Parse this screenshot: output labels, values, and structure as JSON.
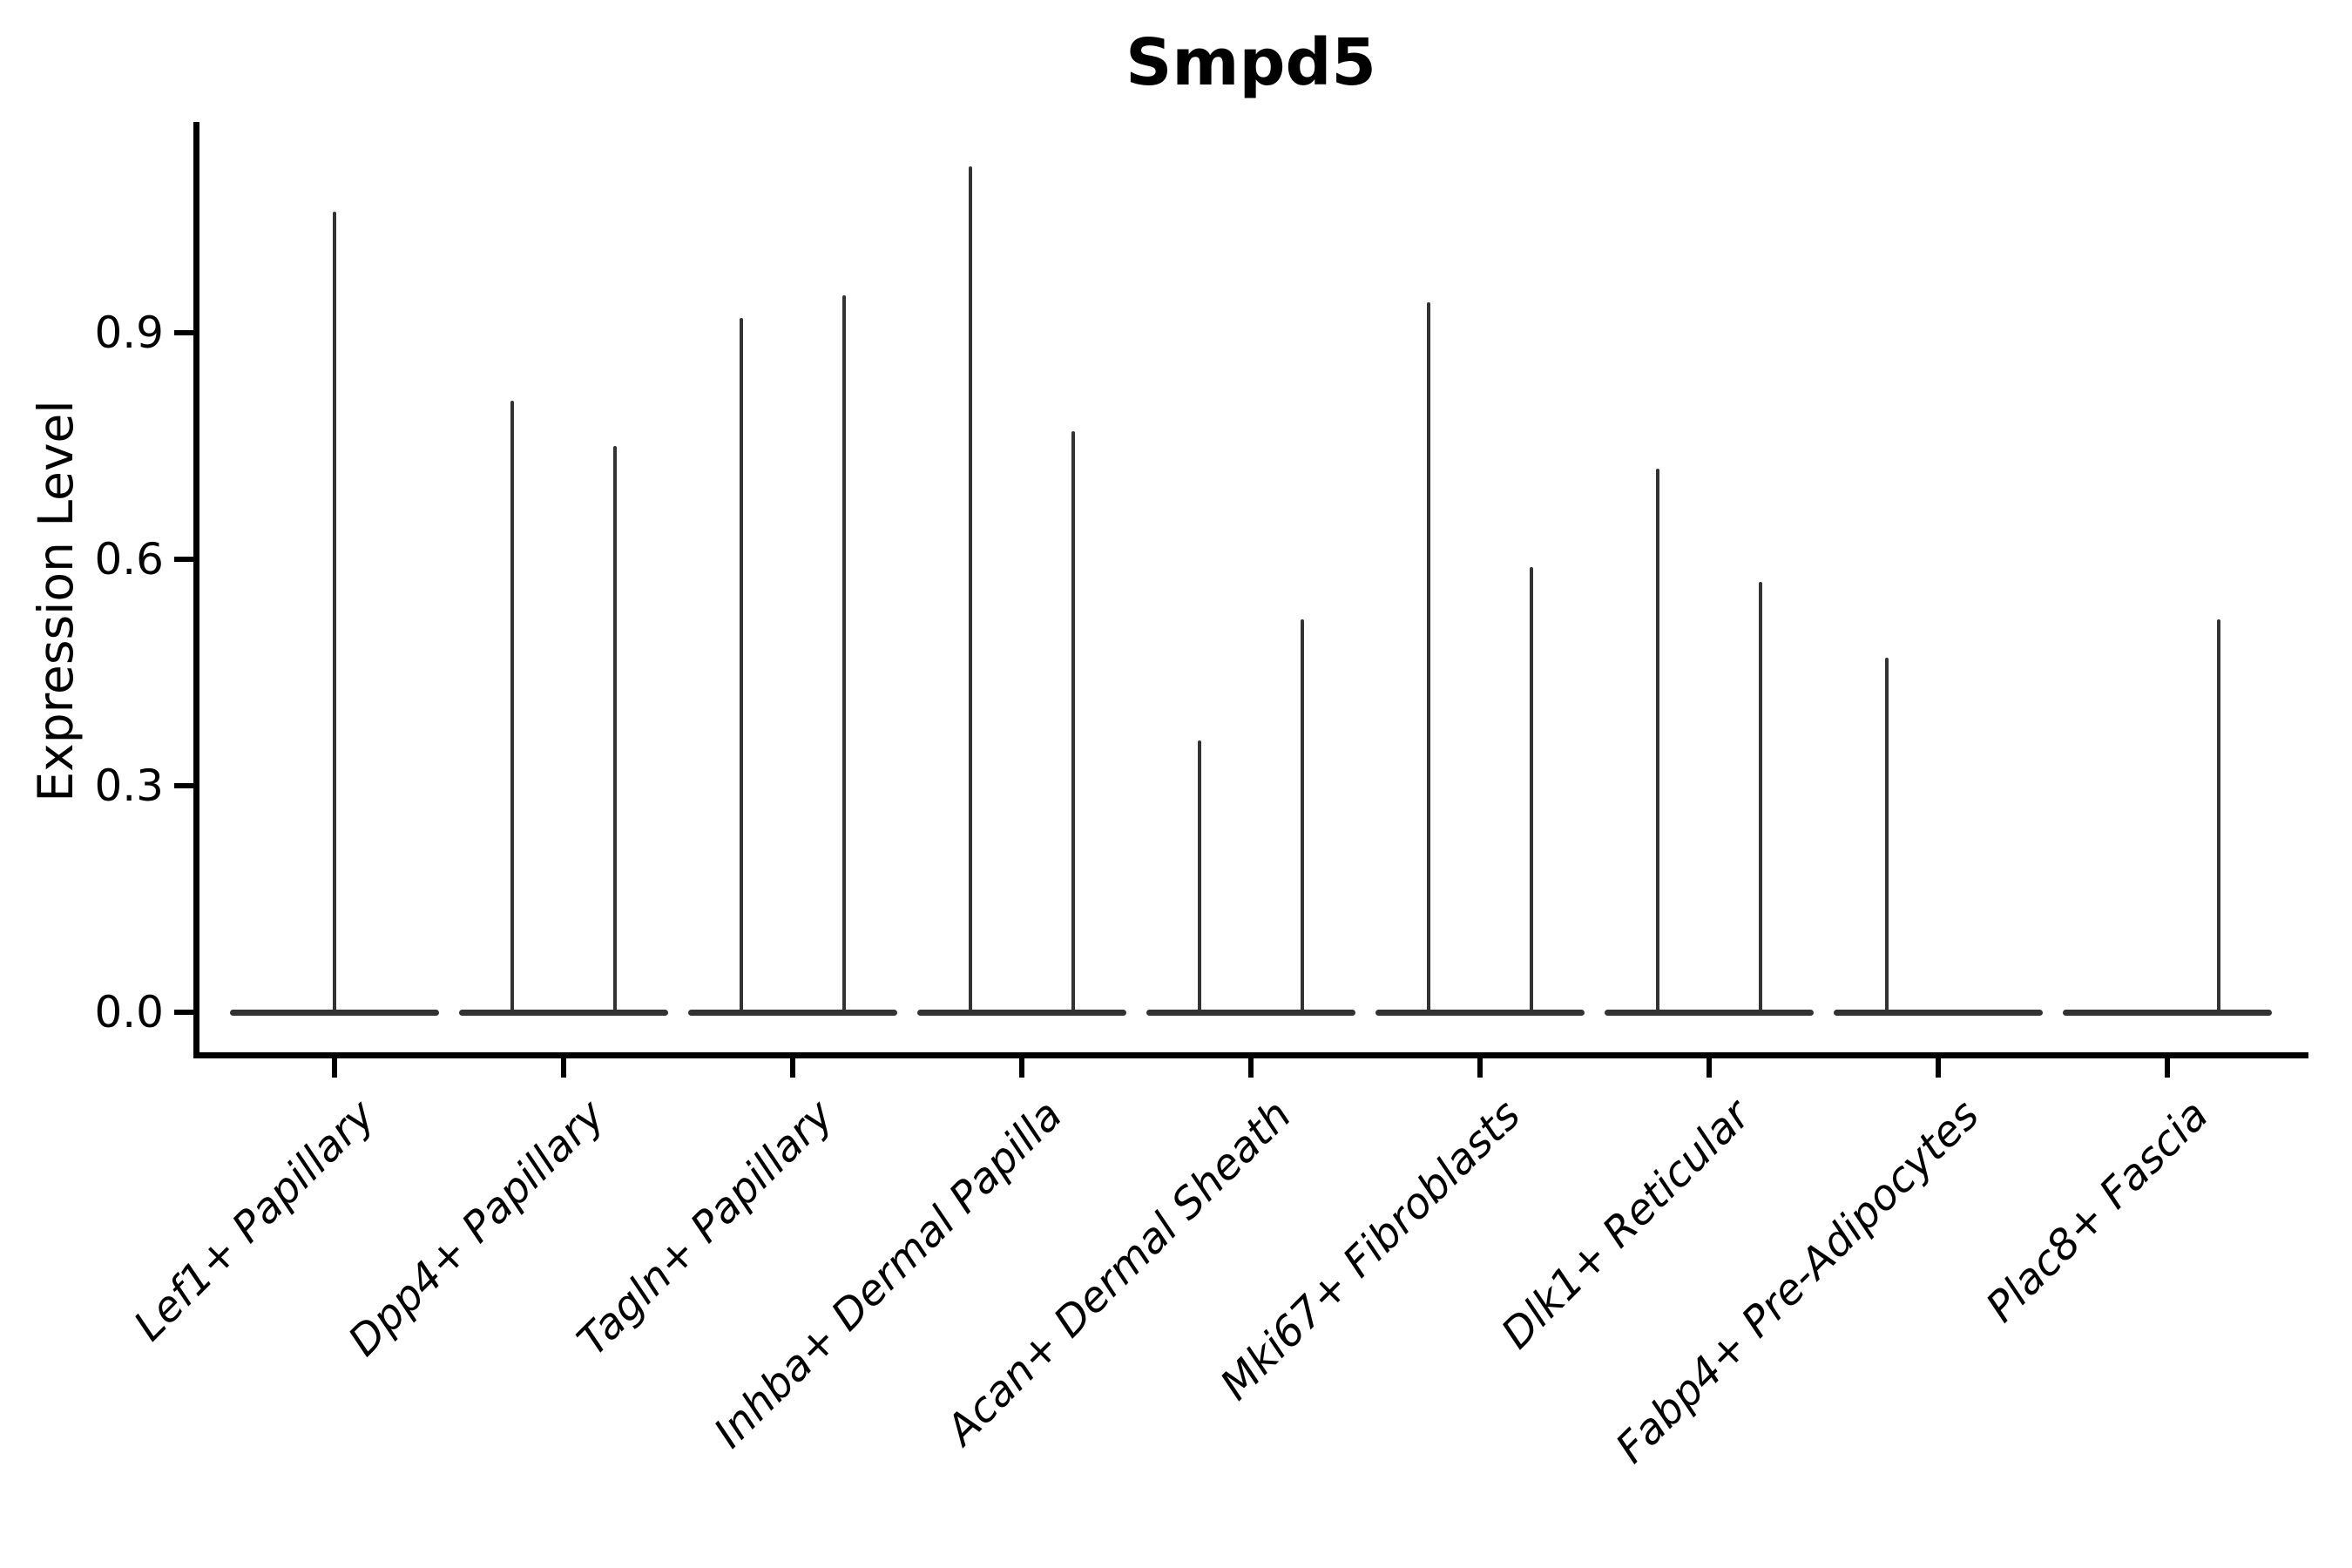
{
  "chart_data": {
    "type": "violin",
    "title": "Smpd5",
    "ylabel": "Expression Level",
    "xlabel": "",
    "legend": "none",
    "grid": false,
    "ylim": [
      -0.06,
      1.18
    ],
    "ytick_values": [
      0.0,
      0.3,
      0.6,
      0.9
    ],
    "ytick_labels": [
      "0.0",
      "0.3",
      "0.6",
      "0.9"
    ],
    "categories": [
      "Lef1+ Papillary",
      "Dpp4+ Papillary",
      "Tagln+ Papillary",
      "Inhba+ Dermal Papilla",
      "Acan+ Dermal Sheath",
      "Mki67+ Fibroblasts",
      "Dlk1+ Reticular",
      "Fabp4+ Pre-Adipocytes",
      "Plac8+ Fascia"
    ],
    "description": "Split violin plot of Smpd5 expression; violins are near-flat at 0 with a wide zero-density base and a thin spike up to the max expression value",
    "violins": [
      {
        "category": "Lef1+ Papillary",
        "parts": [
          {
            "side": "center",
            "max": 1.06
          }
        ]
      },
      {
        "category": "Dpp4+ Papillary",
        "parts": [
          {
            "side": "left",
            "max": 0.81
          },
          {
            "side": "right",
            "max": 0.75
          }
        ]
      },
      {
        "category": "Tagln+ Papillary",
        "parts": [
          {
            "side": "left",
            "max": 0.92
          },
          {
            "side": "right",
            "max": 0.95
          }
        ]
      },
      {
        "category": "Inhba+ Dermal Papilla",
        "parts": [
          {
            "side": "left",
            "max": 1.12
          },
          {
            "side": "right",
            "max": 0.77
          }
        ]
      },
      {
        "category": "Acan+ Dermal Sheath",
        "parts": [
          {
            "side": "left",
            "max": 0.36
          },
          {
            "side": "right",
            "max": 0.52
          }
        ]
      },
      {
        "category": "Mki67+ Fibroblasts",
        "parts": [
          {
            "side": "left",
            "max": 0.94
          },
          {
            "side": "right",
            "max": 0.59
          }
        ]
      },
      {
        "category": "Dlk1+ Reticular",
        "parts": [
          {
            "side": "left",
            "max": 0.72
          },
          {
            "side": "right",
            "max": 0.57
          }
        ]
      },
      {
        "category": "Fabp4+ Pre-Adipocytes",
        "parts": [
          {
            "side": "left",
            "max": 0.47
          }
        ]
      },
      {
        "category": "Plac8+ Fascia",
        "parts": [
          {
            "side": "right",
            "max": 0.52
          }
        ]
      }
    ]
  },
  "colors": {
    "violin": "#333333",
    "axis": "#000000",
    "text": "#000000",
    "background": "#ffffff"
  }
}
